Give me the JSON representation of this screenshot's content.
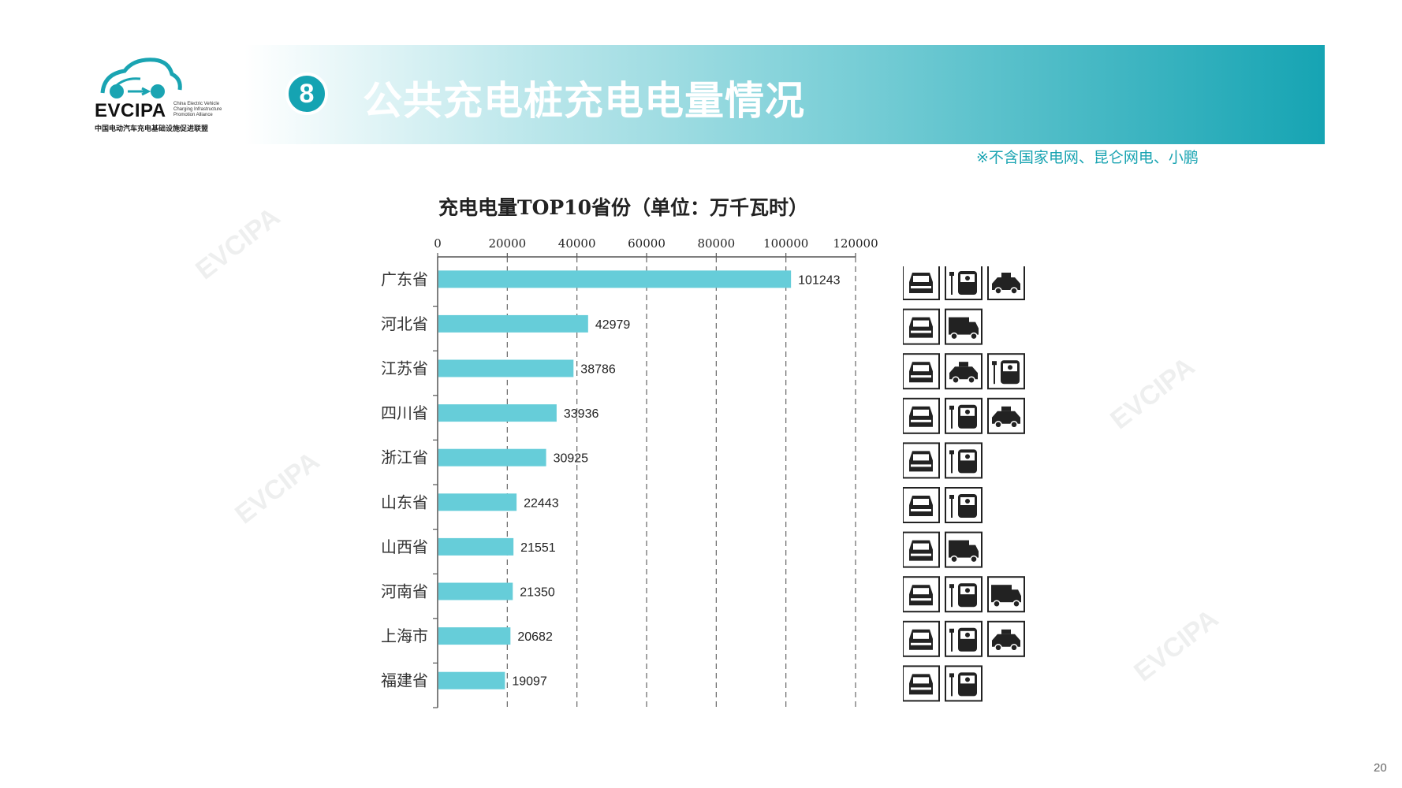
{
  "logo": {
    "name": "EVCIPA",
    "subtitle_lines": [
      "China Electric Vehicle",
      "Charging Infrastructure",
      "Promotion Alliance"
    ],
    "cn_name": "中国电动汽车充电基础设施促进联盟"
  },
  "header": {
    "badge": "8",
    "title": "公共充电桩充电电量情况",
    "note": "※不含国家电网、昆仑网电、小鹏"
  },
  "page_number": "20",
  "watermark": "EVCIPA",
  "colors": {
    "bar": "#66cdd9",
    "accent": "#15a3b2"
  },
  "chart_data": {
    "type": "bar",
    "orientation": "horizontal",
    "title": "充电电量TOP10省份（单位：万千瓦时）",
    "categories": [
      "广东省",
      "河北省",
      "江苏省",
      "四川省",
      "浙江省",
      "山东省",
      "山西省",
      "河南省",
      "上海市",
      "福建省"
    ],
    "values": [
      101243,
      42979,
      38786,
      33936,
      30925,
      22443,
      21551,
      21350,
      20682,
      19097
    ],
    "xlim": [
      0,
      120000
    ],
    "xticks": [
      0,
      20000,
      40000,
      60000,
      80000,
      100000,
      120000
    ],
    "axis_position": "top",
    "grid": "dashed vertical",
    "data_labels": true
  },
  "vehicle_icons": [
    [
      "car-icon",
      "bus-icon",
      "taxi-icon"
    ],
    [
      "car-icon",
      "truck-icon"
    ],
    [
      "car-icon",
      "taxi-icon",
      "bus-icon"
    ],
    [
      "car-icon",
      "bus-icon",
      "taxi-icon"
    ],
    [
      "car-icon",
      "bus-icon"
    ],
    [
      "car-icon",
      "bus-icon"
    ],
    [
      "car-icon",
      "truck-icon"
    ],
    [
      "car-icon",
      "bus-icon",
      "truck-icon"
    ],
    [
      "car-icon",
      "bus-icon",
      "taxi-icon"
    ],
    [
      "car-icon",
      "bus-icon"
    ]
  ]
}
